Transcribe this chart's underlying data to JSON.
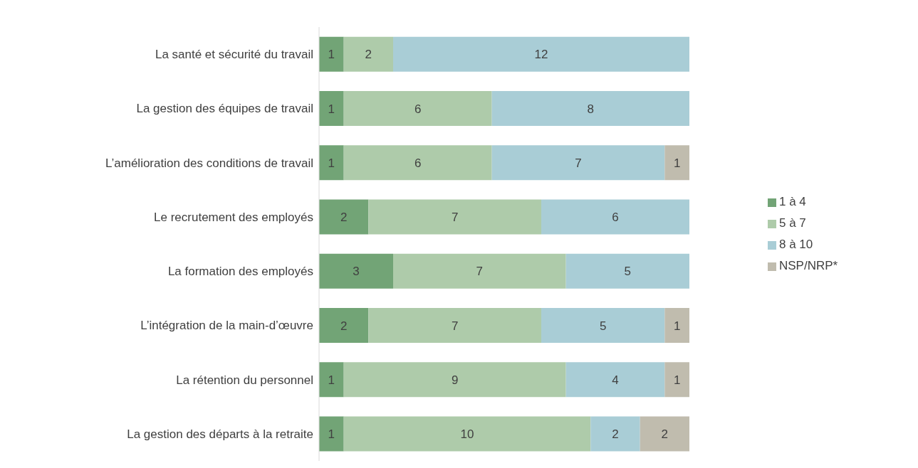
{
  "chart_data": {
    "type": "bar",
    "orientation": "horizontal",
    "stacked": true,
    "data_labels": true,
    "legend": "right",
    "grid": false,
    "tick_labels": "y",
    "xlim": [
      0,
      15
    ],
    "categories": [
      "La santé et sécurité du travail",
      "La gestion des équipes de travail",
      "L’amélioration des conditions de travail",
      "Le recrutement des employés",
      "La formation des employés",
      "L’intégration de la main-d’œuvre ",
      "La rétention du personnel",
      "La gestion des départs à la retraite"
    ],
    "series": [
      {
        "name": "1 à 4",
        "color": "#72a476",
        "values": [
          1,
          1,
          1,
          2,
          3,
          2,
          1,
          1
        ]
      },
      {
        "name": "5 à 7",
        "color": "#aecbaa",
        "values": [
          2,
          6,
          6,
          7,
          7,
          7,
          9,
          10
        ]
      },
      {
        "name": "8 à 10",
        "color": "#a9cdd6",
        "values": [
          12,
          8,
          7,
          6,
          5,
          5,
          4,
          2
        ]
      },
      {
        "name": "NSP/NRP*",
        "color": "#c0bcae",
        "values": [
          null,
          null,
          1,
          null,
          null,
          1,
          1,
          2
        ]
      }
    ]
  }
}
